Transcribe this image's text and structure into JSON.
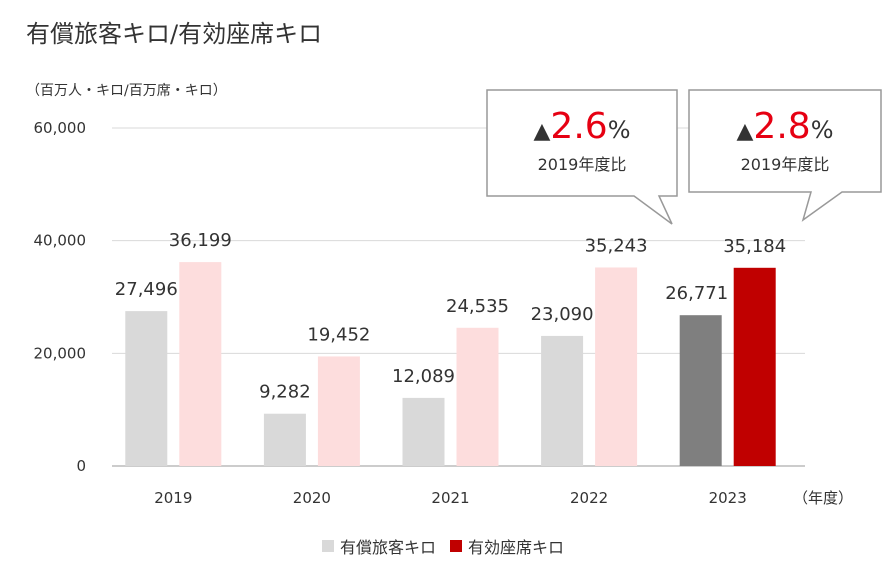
{
  "chart_data": {
    "type": "bar",
    "title": "有償旅客キロ/有効座席キロ",
    "unit_label": "（百万人・キロ/百万席・キロ）",
    "x_unit_label": "（年度）",
    "categories": [
      "2019",
      "2020",
      "2021",
      "2022",
      "2023"
    ],
    "series": [
      {
        "name": "有償旅客キロ",
        "values": [
          27496,
          9282,
          12089,
          23090,
          26771
        ],
        "value_labels": [
          "27,496",
          "9,282",
          "12,089",
          "23,090",
          "26,771"
        ]
      },
      {
        "name": "有効座席キロ",
        "values": [
          36199,
          19452,
          24535,
          35243,
          35184
        ],
        "value_labels": [
          "36,199",
          "19,452",
          "24,535",
          "35,243",
          "35,184"
        ]
      }
    ],
    "yticks": [
      0,
      20000,
      40000,
      60000
    ],
    "ytick_labels": [
      "0",
      "20,000",
      "40,000",
      "60,000"
    ],
    "ylim": [
      0,
      60000
    ],
    "grid": true,
    "legend": "bottom-center",
    "colors": {
      "pax_past": "#d9d9d9",
      "seat_past": "#fddddd",
      "pax_highlight": "#7f7f7f",
      "seat_highlight": "#c00000",
      "callout_red": "#e60012",
      "grid": "#d9d9d9"
    },
    "callouts": [
      {
        "category": "2022",
        "triangle": "▲",
        "value": "2.6",
        "percent": "%",
        "sub": "2019年度比"
      },
      {
        "category": "2023",
        "triangle": "▲",
        "value": "2.8",
        "percent": "%",
        "sub": "2019年度比"
      }
    ]
  }
}
